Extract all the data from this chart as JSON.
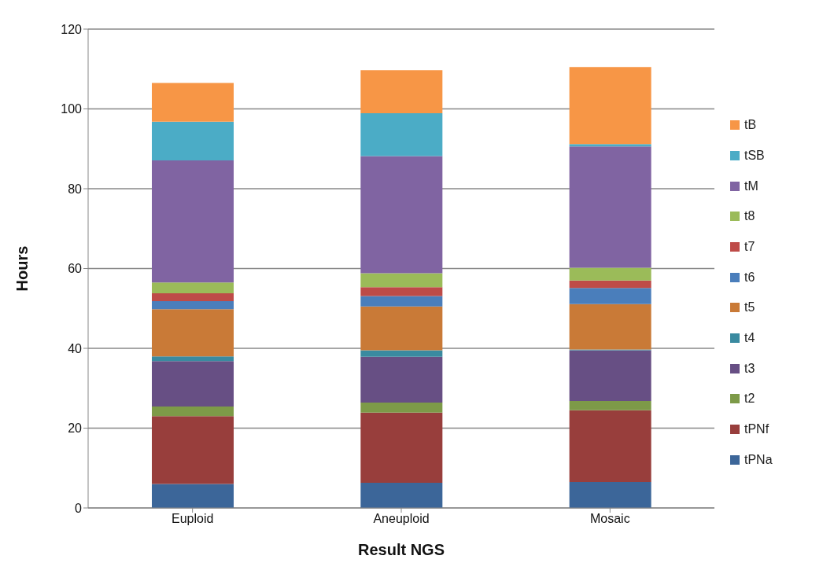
{
  "chart_data": {
    "type": "bar",
    "stacked": true,
    "xlabel": "Result NGS",
    "ylabel": "Hours",
    "categories": [
      "Euploid",
      "Aneuploid",
      "Mosaic"
    ],
    "series": [
      {
        "name": "tPNa",
        "color": "#3c6699",
        "values": [
          6,
          6.3,
          6.5
        ]
      },
      {
        "name": "tPNf",
        "color": "#983e3c",
        "values": [
          17,
          17.6,
          18
        ]
      },
      {
        "name": "t2",
        "color": "#7d9a48",
        "values": [
          2.4,
          2.5,
          2.3
        ]
      },
      {
        "name": "t3",
        "color": "#674f84",
        "values": [
          11.4,
          11.5,
          12.7
        ]
      },
      {
        "name": "t4",
        "color": "#3a8aa0",
        "values": [
          1.2,
          1.6,
          0.2
        ]
      },
      {
        "name": "t5",
        "color": "#c97a37",
        "values": [
          11.8,
          11,
          11.4
        ]
      },
      {
        "name": "t6",
        "color": "#4a7ebb",
        "values": [
          2,
          2.6,
          4
        ]
      },
      {
        "name": "t7",
        "color": "#be4b48",
        "values": [
          2,
          2.2,
          1.9
        ]
      },
      {
        "name": "t8",
        "color": "#9bbb59",
        "values": [
          2.7,
          3.5,
          3.2
        ]
      },
      {
        "name": "tM",
        "color": "#8064a2",
        "values": [
          30.6,
          29.4,
          30.4
        ]
      },
      {
        "name": "tSB",
        "color": "#4bacc6",
        "values": [
          9.7,
          10.7,
          0.6
        ]
      },
      {
        "name": "tB",
        "color": "#f79646",
        "values": [
          9.7,
          10.8,
          19.3
        ]
      }
    ],
    "ylim": [
      0,
      120
    ],
    "yticks": [
      0,
      20,
      40,
      60,
      80,
      100,
      120
    ],
    "grid": "y",
    "legend": "right"
  }
}
